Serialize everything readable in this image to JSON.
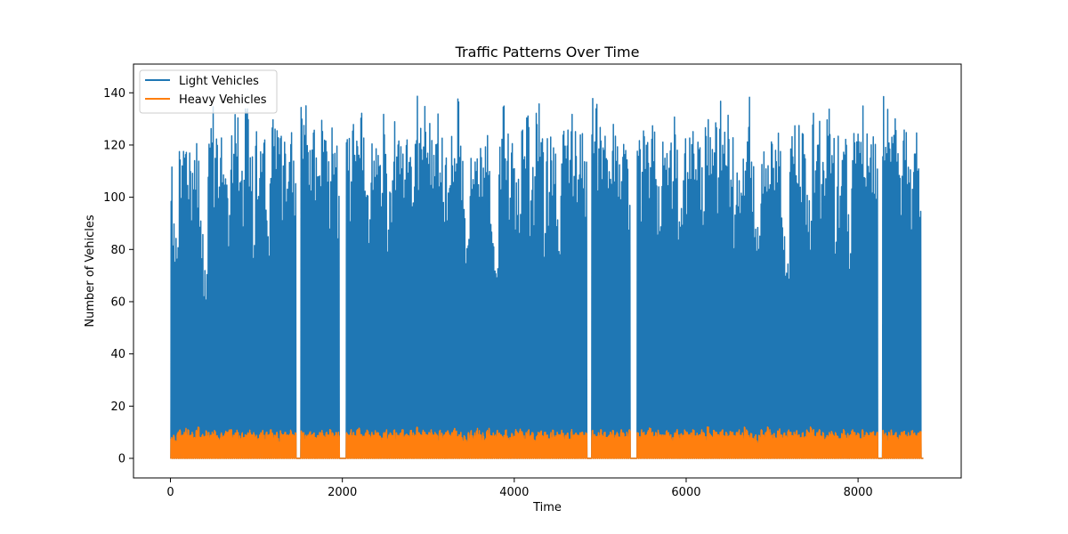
{
  "chart_data": {
    "type": "line",
    "title": "Traffic Patterns Over Time",
    "xlabel": "Time",
    "ylabel": "Number of Vehicles",
    "xlim": [
      -430,
      9200
    ],
    "ylim": [
      -7.5,
      151
    ],
    "x_ticks": [
      0,
      2000,
      4000,
      6000,
      8000
    ],
    "y_ticks": [
      0,
      20,
      40,
      60,
      80,
      100,
      120,
      140
    ],
    "x_tick_labels": [
      "0",
      "2000",
      "4000",
      "6000",
      "8000"
    ],
    "y_tick_labels": [
      "0",
      "20",
      "40",
      "60",
      "80",
      "100",
      "120",
      "140"
    ],
    "x_range": [
      0,
      8760
    ],
    "grid": false,
    "legend_position": "upper-left",
    "series": [
      {
        "name": "Light Vehicles",
        "color": "#1f77b4",
        "sampling": "hourly, one daily cycle per 24 time units",
        "daily_peaks": [
          115,
          97,
          89,
          89,
          121,
          118,
          120,
          120,
          107,
          122,
          112,
          124,
          126,
          118,
          94,
          86,
          74,
          75,
          121,
          127,
          138,
          116,
          131,
          107,
          128,
          117,
          108,
          107,
          99,
          136,
          117,
          132,
          134,
          106,
          121,
          108,
          135,
          136,
          122,
          127,
          89,
          126,
          109,
          126,
          119,
          128,
          100,
          86,
          116,
          132,
          127,
          132,
          124,
          136,
          113,
          127,
          112,
          125,
          125,
          124,
          115,
          0,
          0,
          139,
          129,
          136,
          126,
          129,
          127,
          132,
          118,
          117,
          115,
          134,
          127,
          123,
          119,
          108,
          127,
          125,
          121,
          101,
          0,
          0,
          0,
          123,
          123,
          110,
          128,
          122,
          125,
          121,
          139,
          128,
          108,
          106,
          94,
          123,
          126,
          128,
          121,
          123,
          110,
          134,
          119,
          94,
          106,
          110,
          129,
          116,
          124,
          125,
          126,
          118,
          122,
          121,
          117,
          98,
          128,
          139,
          127,
          127,
          129,
          135,
          117,
          137,
          123,
          125,
          122,
          132,
          113,
          126,
          99,
          117,
          109,
          106,
          124,
          120,
          125,
          144,
          125
        ]
      },
      {
        "name": "Heavy Vehicles",
        "color": "#ff7f0e",
        "daily_peaks": [
          8,
          9,
          7,
          10,
          11,
          9,
          10,
          12,
          11,
          9,
          10,
          8,
          11,
          12,
          9,
          10,
          9,
          11,
          10,
          9,
          10,
          11,
          9,
          8,
          10,
          9,
          11,
          10,
          12,
          11,
          9,
          10,
          11,
          9,
          10,
          8,
          9,
          10,
          11,
          9,
          10,
          9,
          8,
          10,
          11,
          9,
          10,
          9,
          11,
          10,
          9,
          10,
          8,
          11,
          9,
          10,
          9,
          10,
          11,
          9,
          10,
          0,
          0,
          11,
          10,
          9,
          10,
          11,
          9,
          10,
          8,
          9,
          10,
          11,
          9,
          10,
          9,
          11,
          10,
          9,
          10,
          11,
          0,
          0,
          0,
          10,
          9,
          11,
          10,
          9,
          11,
          12,
          10,
          9,
          10,
          11,
          9,
          10,
          9,
          11,
          10,
          9,
          8,
          10,
          11,
          9,
          10,
          9,
          11,
          10,
          9,
          10,
          11,
          9,
          10,
          9,
          11,
          10,
          9,
          12,
          10,
          9,
          11,
          10,
          9,
          10,
          11,
          9,
          10,
          9,
          11,
          10,
          9,
          10,
          11,
          9,
          10,
          12,
          11,
          9,
          10
        ]
      }
    ]
  }
}
